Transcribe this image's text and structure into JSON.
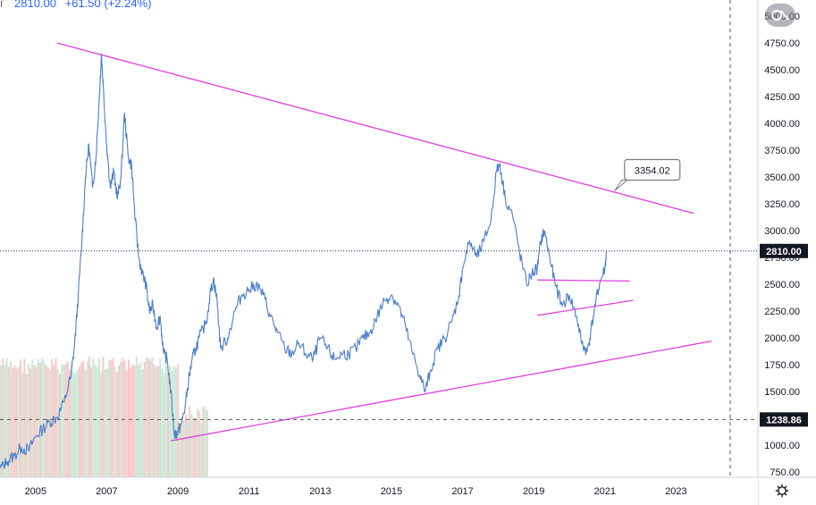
{
  "header": {
    "last": "2810.00",
    "change": "+61.50 (+2.24%)"
  },
  "chart_data": {
    "type": "line",
    "x_ticks": [
      "2005",
      "2007",
      "2009",
      "2011",
      "2013",
      "2015",
      "2017",
      "2019",
      "2021",
      "2023"
    ],
    "x_ticks_numeric": [
      2005,
      2007,
      2009,
      2011,
      2013,
      2015,
      2017,
      2019,
      2021,
      2023
    ],
    "xlim": [
      2004.0,
      2025.3
    ],
    "y_ticks": [
      "5000.00",
      "4750.00",
      "4500.00",
      "4250.00",
      "4000.00",
      "3750.00",
      "3500.00",
      "3250.00",
      "3000.00",
      "2750.00",
      "2500.00",
      "2250.00",
      "2000.00",
      "1750.00",
      "1500.00",
      "1250.00",
      "1000.00",
      "750.00"
    ],
    "y_tick_values": [
      5000,
      4750,
      4500,
      4250,
      4000,
      3750,
      3500,
      3250,
      3000,
      2750,
      2500,
      2250,
      2000,
      1750,
      1500,
      1250,
      1000,
      750
    ],
    "ylim": [
      700,
      5150
    ],
    "grid": false,
    "series": [
      {
        "color": "#4a7ec9",
        "points": [
          [
            2004.0,
            780
          ],
          [
            2004.2,
            850
          ],
          [
            2004.4,
            900
          ],
          [
            2004.6,
            980
          ],
          [
            2004.8,
            950
          ],
          [
            2005.0,
            1080
          ],
          [
            2005.2,
            1150
          ],
          [
            2005.4,
            1220
          ],
          [
            2005.6,
            1260
          ],
          [
            2005.8,
            1400
          ],
          [
            2006.0,
            1650
          ],
          [
            2006.1,
            1950
          ],
          [
            2006.2,
            2400
          ],
          [
            2006.3,
            2900
          ],
          [
            2006.4,
            3500
          ],
          [
            2006.5,
            3800
          ],
          [
            2006.6,
            3400
          ],
          [
            2006.7,
            3700
          ],
          [
            2006.8,
            4300
          ],
          [
            2006.85,
            4650
          ],
          [
            2006.9,
            4350
          ],
          [
            2007.0,
            3800
          ],
          [
            2007.1,
            3400
          ],
          [
            2007.2,
            3550
          ],
          [
            2007.3,
            3300
          ],
          [
            2007.4,
            3500
          ],
          [
            2007.5,
            4100
          ],
          [
            2007.6,
            3700
          ],
          [
            2007.7,
            3600
          ],
          [
            2007.8,
            3100
          ],
          [
            2007.9,
            2750
          ],
          [
            2008.0,
            2600
          ],
          [
            2008.1,
            2500
          ],
          [
            2008.2,
            2250
          ],
          [
            2008.3,
            2300
          ],
          [
            2008.4,
            2100
          ],
          [
            2008.5,
            2200
          ],
          [
            2008.6,
            1850
          ],
          [
            2008.7,
            1800
          ],
          [
            2008.8,
            1500
          ],
          [
            2008.9,
            1100
          ],
          [
            2009.0,
            1120
          ],
          [
            2009.1,
            1200
          ],
          [
            2009.2,
            1350
          ],
          [
            2009.3,
            1600
          ],
          [
            2009.4,
            1800
          ],
          [
            2009.5,
            1900
          ],
          [
            2009.6,
            2000
          ],
          [
            2009.8,
            2150
          ],
          [
            2009.9,
            2400
          ],
          [
            2010.0,
            2550
          ],
          [
            2010.1,
            2350
          ],
          [
            2010.2,
            1900
          ],
          [
            2010.4,
            2000
          ],
          [
            2010.6,
            2250
          ],
          [
            2010.8,
            2400
          ],
          [
            2011.0,
            2450
          ],
          [
            2011.2,
            2500
          ],
          [
            2011.4,
            2400
          ],
          [
            2011.6,
            2200
          ],
          [
            2011.8,
            2050
          ],
          [
            2012.0,
            1900
          ],
          [
            2012.2,
            1850
          ],
          [
            2012.4,
            1950
          ],
          [
            2012.6,
            1850
          ],
          [
            2012.8,
            1800
          ],
          [
            2013.0,
            2000
          ],
          [
            2013.2,
            1900
          ],
          [
            2013.4,
            1800
          ],
          [
            2013.6,
            1850
          ],
          [
            2013.8,
            1850
          ],
          [
            2014.0,
            1900
          ],
          [
            2014.2,
            2000
          ],
          [
            2014.4,
            2050
          ],
          [
            2014.6,
            2200
          ],
          [
            2014.8,
            2350
          ],
          [
            2015.0,
            2400
          ],
          [
            2015.2,
            2300
          ],
          [
            2015.4,
            2100
          ],
          [
            2015.6,
            1850
          ],
          [
            2015.8,
            1650
          ],
          [
            2015.95,
            1500
          ],
          [
            2016.1,
            1700
          ],
          [
            2016.3,
            1900
          ],
          [
            2016.5,
            2000
          ],
          [
            2016.7,
            2150
          ],
          [
            2016.9,
            2400
          ],
          [
            2017.0,
            2650
          ],
          [
            2017.2,
            2900
          ],
          [
            2017.4,
            2750
          ],
          [
            2017.6,
            2900
          ],
          [
            2017.8,
            3100
          ],
          [
            2017.95,
            3550
          ],
          [
            2018.05,
            3620
          ],
          [
            2018.2,
            3300
          ],
          [
            2018.4,
            3150
          ],
          [
            2018.6,
            2800
          ],
          [
            2018.8,
            2500
          ],
          [
            2018.95,
            2600
          ],
          [
            2019.1,
            2650
          ],
          [
            2019.2,
            2900
          ],
          [
            2019.3,
            3000
          ],
          [
            2019.45,
            2750
          ],
          [
            2019.6,
            2500
          ],
          [
            2019.8,
            2300
          ],
          [
            2020.0,
            2400
          ],
          [
            2020.2,
            2200
          ],
          [
            2020.35,
            1950
          ],
          [
            2020.5,
            1870
          ],
          [
            2020.6,
            2050
          ],
          [
            2020.75,
            2350
          ],
          [
            2020.85,
            2500
          ],
          [
            2021.0,
            2650
          ],
          [
            2021.05,
            2810
          ]
        ]
      }
    ],
    "last_price_marker": "2810.00",
    "crosshair_price_marker": "1238.86",
    "crosshair_value": 1238.86,
    "annotation": {
      "label": "3354.02",
      "x": 2021.3,
      "y": 3354.02
    },
    "trendlines": [
      {
        "from": [
          2005.6,
          4750
        ],
        "to": [
          2023.5,
          3160
        ],
        "color": "#e040e0"
      },
      {
        "from": [
          2008.8,
          1040
        ],
        "to": [
          2024.0,
          1970
        ],
        "color": "#e040e0"
      },
      {
        "from": [
          2019.1,
          2540
        ],
        "to": [
          2021.7,
          2530
        ],
        "color": "#e040e0"
      },
      {
        "from": [
          2019.1,
          2210
        ],
        "to": [
          2021.8,
          2350
        ],
        "color": "#e040e0"
      }
    ],
    "volume": {
      "colors": {
        "up": "#b8e0c8",
        "down": "#f4b7b7"
      },
      "x_range": [
        2004.0,
        2009.85
      ]
    },
    "colors": {
      "price_line": "#4a7ec9",
      "trendline": "#e040e0",
      "label_bg": "#131722",
      "label_text": "#ffffff",
      "dotted_price": "#1a237e",
      "crosshair": "#555555",
      "axis_line": "#d1d4dc",
      "annotation_border": "#787b86"
    }
  }
}
